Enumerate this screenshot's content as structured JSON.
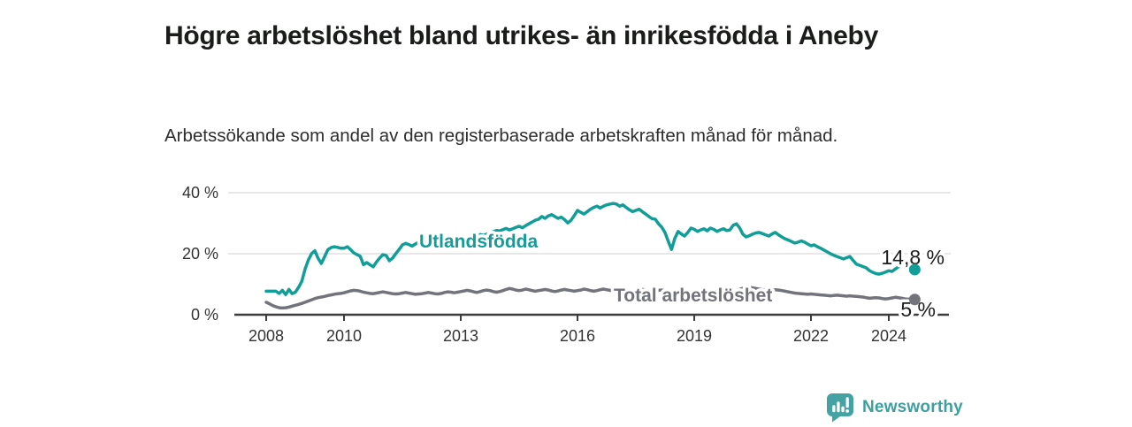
{
  "header": {
    "title": "Högre arbetslöshet bland utrikes- än inrikesfödda i Aneby",
    "subtitle": "Arbetssökande som andel av den registerbaserade arbetskraften månad för månad."
  },
  "footer": {
    "brand": "Newsworthy",
    "brand_icon": "newsworthy-bar-chart-bubble-icon"
  },
  "colors": {
    "accent_teal": "#129e98",
    "series_gray": "#73737b",
    "logo_teal": "#40a0a0",
    "grid": "#dadada",
    "axis": "#3d3d3d",
    "text_dark": "#1a1c1a"
  },
  "chart_data": {
    "type": "line",
    "title": "Högre arbetslöshet bland utrikes- än inrikesfödda i Aneby",
    "subtitle": "Arbetssökande som andel av den registerbaserade arbetskraften månad för månad.",
    "x_frequency": "monthly",
    "x_start": "2008-01",
    "x_end": "2024-09",
    "grid": "horizontal",
    "ylim": [
      0,
      43
    ],
    "y_ticks": {
      "values": [
        0,
        20,
        40
      ],
      "labels": [
        "0 %",
        "20 %",
        "40 %"
      ]
    },
    "x_ticks": {
      "values": [
        2008,
        2010,
        2013,
        2016,
        2019,
        2022,
        2024
      ],
      "labels": [
        "2008",
        "2010",
        "2013",
        "2016",
        "2019",
        "2022",
        "2024"
      ]
    },
    "series": [
      {
        "name": "Utlandsfödda",
        "color": "#129e98",
        "end_label": "14,8 %",
        "end_value": 14.8,
        "values": [
          7.7,
          7.7,
          7.7,
          7.7,
          7.0,
          8.0,
          6.6,
          8.3,
          6.9,
          7.4,
          9.0,
          11.0,
          15.0,
          18.0,
          20.0,
          21.0,
          18.5,
          16.8,
          19.0,
          21.3,
          22.0,
          22.3,
          22.1,
          21.8,
          21.8,
          22.3,
          21.4,
          20.3,
          19.7,
          19.2,
          16.4,
          17.1,
          16.4,
          15.7,
          17.3,
          18.6,
          19.7,
          19.4,
          17.7,
          18.6,
          20.1,
          21.4,
          22.9,
          23.4,
          23.0,
          22.5,
          23.2,
          23.8,
          24.2,
          24.0,
          23.6,
          23.9,
          24.3,
          24.0,
          23.7,
          24.1,
          24.5,
          24.8,
          25.0,
          25.3,
          25.5,
          25.2,
          24.9,
          25.3,
          25.7,
          26.0,
          26.3,
          26.0,
          26.4,
          26.8,
          27.2,
          27.6,
          27.5,
          27.9,
          28.3,
          27.8,
          28.2,
          28.6,
          29.0,
          28.5,
          29.2,
          29.8,
          30.4,
          31.0,
          31.3,
          32.2,
          31.6,
          32.4,
          32.8,
          32.2,
          31.6,
          32.0,
          31.2,
          30.1,
          31.0,
          32.5,
          34.2,
          33.6,
          33.0,
          33.8,
          34.6,
          35.2,
          35.6,
          35.0,
          35.6,
          36.0,
          36.3,
          36.5,
          36.3,
          35.6,
          36.0,
          35.2,
          34.4,
          33.8,
          34.2,
          34.6,
          33.8,
          33.0,
          32.2,
          31.5,
          31.3,
          29.8,
          28.7,
          26.9,
          24.0,
          21.4,
          25.0,
          27.3,
          26.5,
          25.8,
          27.0,
          28.4,
          28.0,
          27.3,
          27.8,
          28.2,
          27.5,
          28.4,
          28.0,
          27.3,
          27.8,
          28.2,
          27.6,
          27.8,
          29.3,
          29.8,
          28.5,
          26.4,
          25.5,
          25.9,
          26.4,
          26.8,
          27.0,
          26.6,
          26.2,
          25.8,
          26.5,
          27.0,
          26.2,
          25.5,
          24.9,
          24.5,
          24.0,
          23.5,
          23.8,
          24.2,
          23.8,
          23.2,
          22.6,
          22.9,
          22.3,
          21.8,
          21.2,
          20.6,
          20.0,
          19.5,
          19.1,
          18.7,
          18.3,
          18.7,
          19.1,
          17.8,
          16.6,
          16.2,
          15.8,
          15.4,
          14.5,
          13.9,
          13.5,
          13.3,
          13.6,
          14.0,
          14.4,
          14.2,
          15.0,
          15.7,
          16.4,
          16.8,
          16.2,
          15.4,
          14.8
        ]
      },
      {
        "name": "Total arbetslöshet",
        "color": "#73737b",
        "end_label": "5 %",
        "end_value": 5.0,
        "values": [
          4.1,
          3.6,
          3.0,
          2.6,
          2.3,
          2.2,
          2.3,
          2.5,
          2.8,
          3.1,
          3.4,
          3.7,
          4.1,
          4.5,
          4.9,
          5.3,
          5.6,
          5.8,
          6.0,
          6.3,
          6.5,
          6.7,
          6.9,
          7.0,
          7.2,
          7.5,
          7.8,
          8.0,
          7.9,
          7.7,
          7.4,
          7.2,
          7.0,
          6.9,
          7.1,
          7.3,
          7.5,
          7.3,
          7.1,
          6.9,
          6.8,
          6.9,
          7.1,
          7.3,
          7.1,
          6.9,
          6.7,
          6.8,
          6.9,
          7.1,
          7.3,
          7.1,
          6.9,
          6.8,
          7.0,
          7.3,
          7.5,
          7.4,
          7.2,
          7.4,
          7.6,
          7.8,
          8.0,
          7.8,
          7.5,
          7.3,
          7.6,
          7.9,
          8.1,
          7.9,
          7.6,
          7.4,
          7.6,
          7.9,
          8.3,
          8.6,
          8.4,
          8.1,
          7.9,
          8.1,
          8.4,
          8.2,
          7.9,
          7.7,
          7.9,
          8.1,
          8.3,
          8.1,
          7.8,
          7.6,
          7.8,
          8.1,
          8.3,
          8.1,
          7.9,
          7.7,
          7.9,
          8.1,
          8.4,
          8.2,
          7.9,
          7.7,
          7.9,
          8.2,
          8.4,
          8.2,
          8.0,
          7.8,
          8.0,
          8.2,
          8.4,
          8.1,
          7.8,
          7.6,
          7.8,
          8.1,
          8.3,
          8.1,
          7.8,
          7.6,
          7.8,
          8.0,
          8.1,
          7.9,
          7.6,
          7.3,
          7.1,
          7.3,
          7.6,
          7.8,
          7.6,
          7.4,
          7.6,
          7.8,
          8.0,
          7.8,
          7.5,
          7.3,
          7.5,
          7.8,
          8.0,
          7.8,
          7.6,
          7.4,
          7.6,
          7.9,
          8.3,
          8.7,
          8.9,
          9.0,
          8.8,
          8.6,
          8.4,
          8.2,
          8.0,
          7.9,
          8.1,
          8.2,
          8.1,
          7.9,
          7.7,
          7.5,
          7.3,
          7.1,
          7.0,
          6.9,
          6.8,
          6.7,
          6.8,
          6.7,
          6.6,
          6.5,
          6.4,
          6.3,
          6.2,
          6.3,
          6.4,
          6.3,
          6.2,
          6.1,
          6.2,
          6.1,
          6.0,
          5.9,
          5.8,
          5.6,
          5.4,
          5.5,
          5.6,
          5.5,
          5.3,
          5.2,
          5.3,
          5.5,
          5.7,
          5.6,
          5.4,
          5.2,
          5.1,
          5.2,
          5.0
        ]
      }
    ]
  }
}
